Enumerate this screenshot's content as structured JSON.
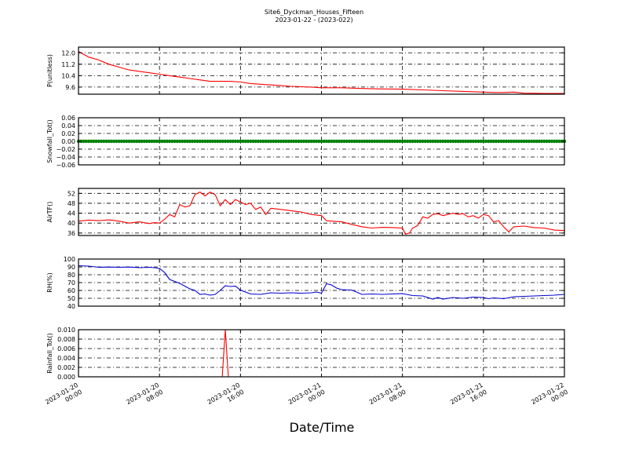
{
  "header": {
    "title": "Site6_Dyckman_Houses_Fifteen",
    "subtitle": "2023-01-22 - (2023-022)"
  },
  "xaxis": {
    "label": "Date/Time",
    "ticks": [
      {
        "d": "2023-01-20",
        "t": "00:00",
        "h": 0
      },
      {
        "d": "2023-01-20",
        "t": "08:00",
        "h": 8
      },
      {
        "d": "2023-01-20",
        "t": "16:00",
        "h": 16
      },
      {
        "d": "2023-01-21",
        "t": "00:00",
        "h": 24
      },
      {
        "d": "2023-01-21",
        "t": "08:00",
        "h": 32
      },
      {
        "d": "2023-01-21",
        "t": "16:00",
        "h": 40
      },
      {
        "d": "2023-01-22",
        "t": "00:00",
        "h": 48
      }
    ]
  },
  "chart_data": [
    {
      "type": "line",
      "ylabel": "P(unitless)",
      "ylim": [
        9.1,
        12.4
      ],
      "yticks": [
        "12.0",
        "11.2",
        "10.4",
        "9.6"
      ],
      "ytick_values": [
        12.0,
        11.2,
        10.4,
        9.6
      ],
      "color": "#ff0000",
      "grid": true,
      "x_hours": [
        0,
        0.5,
        1,
        2,
        3,
        4,
        5,
        6,
        7,
        8,
        9,
        10,
        11,
        12,
        13,
        14,
        15,
        16,
        17,
        18,
        19,
        20,
        21,
        22,
        23,
        24,
        26,
        28,
        30,
        32,
        34,
        36,
        38,
        40,
        41,
        42,
        43,
        44,
        46,
        48
      ],
      "values": [
        12.1,
        11.9,
        11.7,
        11.5,
        11.2,
        11.0,
        10.8,
        10.7,
        10.6,
        10.5,
        10.4,
        10.3,
        10.2,
        10.1,
        10.0,
        10.0,
        10.0,
        9.95,
        9.85,
        9.8,
        9.75,
        9.7,
        9.65,
        9.62,
        9.6,
        9.55,
        9.55,
        9.5,
        9.47,
        9.45,
        9.4,
        9.35,
        9.3,
        9.25,
        9.22,
        9.22,
        9.25,
        9.17,
        9.15,
        9.15
      ]
    },
    {
      "type": "scatter",
      "ylabel": "Snowfall_Tot()",
      "ylim": [
        -0.06,
        0.06
      ],
      "yticks": [
        "0.06",
        "0.04",
        "0.02",
        "0.00",
        "−0.02",
        "−0.04",
        "−0.06"
      ],
      "ytick_values": [
        0.06,
        0.04,
        0.02,
        0.0,
        -0.02,
        -0.04,
        -0.06
      ],
      "color": "#008000",
      "grid": true,
      "constant_value": 0.0,
      "x_range_hours": [
        0,
        48
      ]
    },
    {
      "type": "line",
      "ylabel": "AirTF()",
      "ylim": [
        35,
        54
      ],
      "yticks": [
        "52",
        "48",
        "44",
        "40",
        "36"
      ],
      "ytick_values": [
        52,
        48,
        44,
        40,
        36
      ],
      "color": "#ff0000",
      "grid": true,
      "x_hours": [
        0,
        1,
        2,
        3,
        4,
        5,
        6,
        7,
        7.5,
        8,
        8.5,
        9,
        9.5,
        10,
        10.5,
        11,
        11.5,
        12,
        12.5,
        13,
        13.5,
        14,
        14.5,
        15,
        15.5,
        16,
        16.5,
        17,
        17.5,
        18,
        18.5,
        19,
        20,
        21,
        22,
        23,
        24,
        24.5,
        25,
        26,
        27,
        28,
        29,
        30,
        31,
        32,
        32.3,
        32.7,
        33,
        33.5,
        34,
        34.5,
        35,
        35.5,
        36,
        37,
        37.5,
        38,
        38.5,
        39,
        39.5,
        40,
        40.5,
        41,
        41.5,
        42,
        42.5,
        43,
        44,
        45,
        46,
        47,
        48
      ],
      "values": [
        40.8,
        41.2,
        41.0,
        41.3,
        40.8,
        40.0,
        40.5,
        39.8,
        40.2,
        40.0,
        41.5,
        43.5,
        42.5,
        47.5,
        46.5,
        47.0,
        51.5,
        52.5,
        51.0,
        52.5,
        51.5,
        47.0,
        49.5,
        47.5,
        49.5,
        48.5,
        47.5,
        48.0,
        45.5,
        46.5,
        43.5,
        46.0,
        45.5,
        45.0,
        44.5,
        43.5,
        43.0,
        41.0,
        40.8,
        40.5,
        39.5,
        38.5,
        38.0,
        38.3,
        38.2,
        38.0,
        35.5,
        36.0,
        38.0,
        39.0,
        42.5,
        42.0,
        43.5,
        43.8,
        43.0,
        44.0,
        43.5,
        43.8,
        42.5,
        43.0,
        42.0,
        43.5,
        43.0,
        40.5,
        41.0,
        38.5,
        36.5,
        38.5,
        38.8,
        38.2,
        38.0,
        37.2,
        37.0
      ]
    },
    {
      "type": "line",
      "ylabel": "RH(%)",
      "ylim": [
        40,
        100
      ],
      "yticks": [
        "100",
        "90",
        "80",
        "70",
        "60",
        "50",
        "40"
      ],
      "ytick_values": [
        100,
        90,
        80,
        70,
        60,
        50,
        40
      ],
      "color": "#0000cc",
      "grid": true,
      "x_hours": [
        0,
        1,
        2,
        3,
        4,
        5,
        6,
        7,
        7.5,
        8,
        8.5,
        9,
        9.5,
        10,
        11,
        11.5,
        12,
        12.5,
        13,
        13.5,
        14,
        14.5,
        15,
        15.5,
        16,
        17,
        18,
        19,
        20,
        21,
        22,
        23,
        23.5,
        24,
        24.5,
        25,
        25.5,
        26,
        27,
        28,
        29,
        30,
        31,
        32,
        33,
        34,
        35,
        35.5,
        36,
        37,
        38,
        39,
        40,
        40.5,
        41,
        42,
        43,
        44,
        45,
        46,
        47,
        48
      ],
      "values": [
        91.5,
        91.0,
        89.5,
        89.8,
        89.5,
        89.8,
        89.0,
        89.5,
        89.0,
        88.0,
        83.0,
        74.0,
        71.5,
        69.0,
        62.0,
        60.0,
        55.0,
        55.5,
        54.0,
        55.0,
        60.0,
        66.0,
        65.0,
        65.5,
        60.5,
        55.5,
        55.0,
        57.0,
        56.5,
        57.0,
        56.5,
        57.0,
        58.0,
        56.5,
        68.5,
        67.0,
        63.0,
        61.0,
        60.5,
        55.0,
        55.5,
        55.0,
        55.5,
        56.0,
        53.5,
        53.0,
        49.0,
        51.0,
        49.0,
        51.0,
        50.0,
        51.5,
        51.0,
        49.5,
        50.5,
        49.5,
        52.0,
        52.5,
        53.0,
        53.5,
        54.0,
        55.0
      ]
    },
    {
      "type": "line",
      "ylabel": "Rainfall_Tot()",
      "ylim": [
        0,
        0.01
      ],
      "yticks": [
        "0.010",
        "0.008",
        "0.006",
        "0.004",
        "0.002",
        "0.000"
      ],
      "ytick_values": [
        0.01,
        0.008,
        0.006,
        0.004,
        0.002,
        0.0
      ],
      "color": "#ff0000",
      "grid": true,
      "x_hours": [
        0,
        14.2,
        14.5,
        14.8,
        48
      ],
      "values": [
        0,
        0,
        0.01,
        0,
        0
      ]
    }
  ]
}
